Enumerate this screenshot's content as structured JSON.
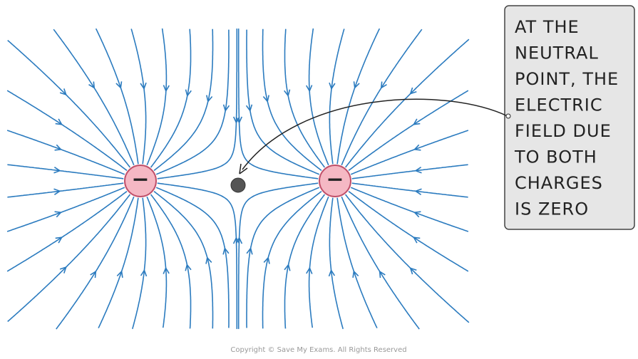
{
  "callout": {
    "lines": [
      "AT THE",
      "NEUTRAL",
      "POINT, THE",
      "ELECTRIC",
      "FIELD DUE",
      "TO BOTH",
      "CHARGES",
      "IS ZERO"
    ]
  },
  "charges": [
    {
      "label": "−"
    },
    {
      "label": "−"
    }
  ],
  "footer": "Copyright © Save My Exams. All Rights Reserved"
}
